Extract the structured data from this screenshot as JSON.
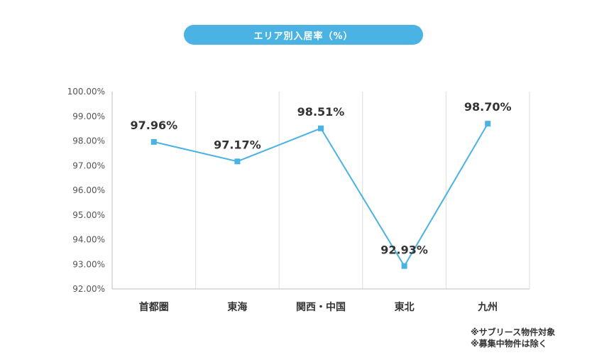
{
  "chart_data": {
    "type": "line",
    "title": "エリア別入居率（%）",
    "categories": [
      "首都圏",
      "東海",
      "関西・中国",
      "東北",
      "九州"
    ],
    "series": [
      {
        "values": [
          97.96,
          97.17,
          98.51,
          92.93,
          98.7
        ]
      }
    ],
    "data_labels": [
      "97.96%",
      "97.17%",
      "98.51%",
      "92.93%",
      "98.70%"
    ],
    "y_ticks": [
      "92.00%",
      "93.00%",
      "94.00%",
      "95.00%",
      "96.00%",
      "97.00%",
      "98.00%",
      "99.00%",
      "100.00%"
    ],
    "ylim": [
      92,
      100
    ],
    "xlabel": "",
    "ylabel": "",
    "grid": "vertical",
    "color": "#4ab3e3"
  },
  "notes": [
    "※サブリース物件対象",
    "※募集中物件は除く"
  ]
}
